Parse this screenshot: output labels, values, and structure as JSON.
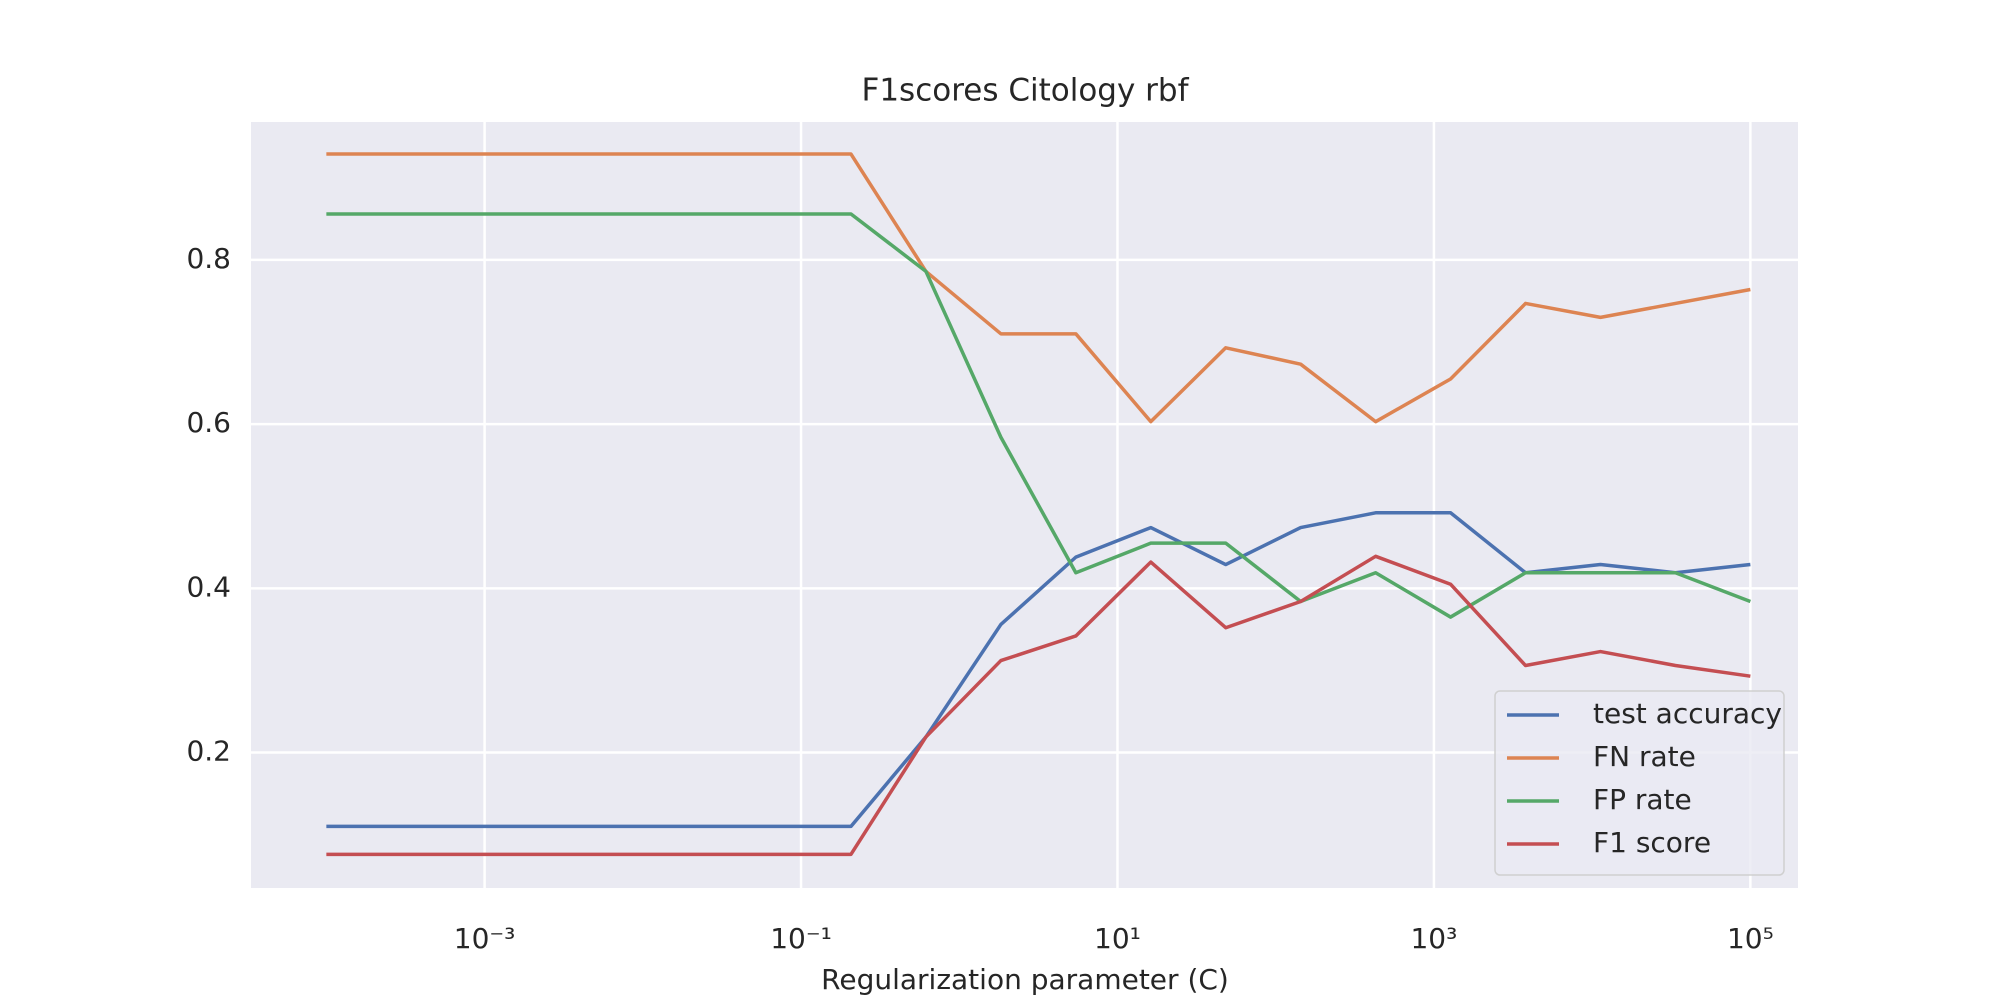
{
  "chart_data": {
    "type": "line",
    "title": "F1scores Citology rbf",
    "x_label": "Regularization parameter (C)",
    "x_scale": "log",
    "x": [
      0.0001,
      0.0002976,
      0.0008859,
      0.002637,
      0.007848,
      0.02336,
      0.06952,
      0.2069,
      0.6158,
      1.833,
      5.456,
      16.24,
      48.33,
      143.8,
      428.1,
      1274,
      3793,
      11288,
      33598,
      100000
    ],
    "series": [
      {
        "name": "test accuracy",
        "color": "#4c72b0",
        "values": [
          0.11,
          0.11,
          0.11,
          0.11,
          0.11,
          0.11,
          0.11,
          0.11,
          0.219,
          0.356,
          0.438,
          0.474,
          0.429,
          0.474,
          0.492,
          0.492,
          0.419,
          0.429,
          0.419,
          0.429
        ]
      },
      {
        "name": "FN rate",
        "color": "#dd8452",
        "values": [
          0.929,
          0.929,
          0.929,
          0.929,
          0.929,
          0.929,
          0.929,
          0.929,
          0.786,
          0.71,
          0.71,
          0.603,
          0.693,
          0.673,
          0.603,
          0.655,
          0.747,
          0.73,
          0.747,
          0.764
        ]
      },
      {
        "name": "FP rate",
        "color": "#55a868",
        "values": [
          0.856,
          0.856,
          0.856,
          0.856,
          0.856,
          0.856,
          0.856,
          0.856,
          0.786,
          0.584,
          0.419,
          0.455,
          0.455,
          0.384,
          0.419,
          0.365,
          0.419,
          0.419,
          0.419,
          0.384
        ]
      },
      {
        "name": "F1 score",
        "color": "#c44e52",
        "values": [
          0.076,
          0.076,
          0.076,
          0.076,
          0.076,
          0.076,
          0.076,
          0.076,
          0.219,
          0.312,
          0.342,
          0.432,
          0.352,
          0.384,
          0.439,
          0.405,
          0.306,
          0.323,
          0.306,
          0.293
        ]
      }
    ],
    "xlim": [
      3.34e-05,
      200000
    ],
    "xticks": [
      {
        "value": 0.001,
        "label": "10⁻³"
      },
      {
        "value": 0.1,
        "label": "10⁻¹"
      },
      {
        "value": 10,
        "label": "10¹"
      },
      {
        "value": 1000,
        "label": "10³"
      },
      {
        "value": 100000,
        "label": "10⁵"
      }
    ],
    "ylim": [
      0.035,
      0.968
    ],
    "yticks": [
      0.2,
      0.4,
      0.6,
      0.8
    ],
    "grid": true,
    "legend": "lower right"
  }
}
